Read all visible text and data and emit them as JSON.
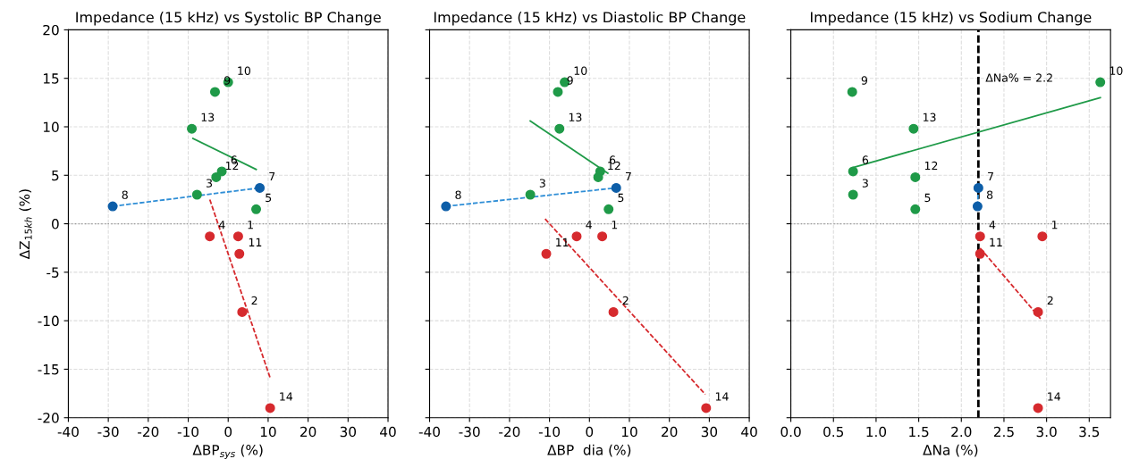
{
  "chart_data": [
    {
      "type": "scatter",
      "title": "Impedance (15 kHz) vs Systolic BP Change",
      "xlabel": "ΔBP$_{sys}$ (%)",
      "ylabel": "ΔZ$_{15kh}$ (%)",
      "xlim": [
        -40,
        40
      ],
      "xticks": [
        -40,
        -30,
        -20,
        -10,
        0,
        10,
        20,
        30,
        40
      ],
      "ylim": [
        -20,
        20
      ],
      "yticks": [
        -20,
        -15,
        -10,
        -5,
        0,
        5,
        10,
        15,
        20
      ],
      "grid": true,
      "marker": "circle",
      "series": [
        {
          "color": "#d62a2e",
          "x": [
            2.5,
            3.5,
            -4.6,
            2.8,
            10.5
          ],
          "values": [
            -1.3,
            -9.1,
            -1.3,
            -3.1,
            -19.0
          ]
        },
        {
          "color": "#1f9a48",
          "x": [
            -7.8,
            7.0,
            -1.6,
            -3.3,
            0.0,
            -3.0,
            -9.1
          ],
          "values": [
            3.0,
            1.5,
            5.4,
            13.6,
            14.6,
            4.8,
            9.8
          ]
        },
        {
          "color": "#0d5ea8",
          "x": [
            7.9,
            -28.9
          ],
          "values": [
            3.7,
            1.8
          ]
        },
        {
          "type": "line",
          "marker": "none",
          "color": "#d62a2e",
          "line_style": "dashed",
          "x": [
            -4.6,
            10.5
          ],
          "values": [
            2.5,
            -15.9
          ]
        },
        {
          "type": "line",
          "marker": "none",
          "color": "#1f9a48",
          "line_style": "solid",
          "x": [
            -8.8,
            7.0
          ],
          "values": [
            8.8,
            5.6
          ]
        },
        {
          "type": "line",
          "marker": "none",
          "color": "#2f8ed6",
          "line_style": "dashed",
          "x": [
            -28.9,
            7.9
          ],
          "values": [
            1.8,
            3.7
          ]
        }
      ],
      "ref_lines": [
        {
          "axis": "y",
          "value": 0,
          "color": "#999999",
          "line_style": "dotted"
        }
      ],
      "annotations": [
        {
          "text": "1",
          "x": 2.5,
          "y": -1.3
        },
        {
          "text": "2",
          "x": 3.5,
          "y": -9.1
        },
        {
          "text": "3",
          "x": -7.8,
          "y": 3.0
        },
        {
          "text": "4",
          "x": -4.6,
          "y": -1.3
        },
        {
          "text": "5",
          "x": 7.0,
          "y": 1.5
        },
        {
          "text": "6",
          "x": -1.6,
          "y": 5.4
        },
        {
          "text": "7",
          "x": 7.9,
          "y": 3.7
        },
        {
          "text": "8",
          "x": -28.9,
          "y": 1.8
        },
        {
          "text": "9",
          "x": -3.3,
          "y": 13.6
        },
        {
          "text": "10",
          "x": 0.0,
          "y": 14.6
        },
        {
          "text": "11",
          "x": 2.8,
          "y": -3.1
        },
        {
          "text": "12",
          "x": -3.0,
          "y": 4.8
        },
        {
          "text": "13",
          "x": -9.1,
          "y": 9.8
        },
        {
          "text": "14",
          "x": 10.5,
          "y": -19.0
        }
      ]
    },
    {
      "type": "scatter",
      "title": "Impedance (15 kHz) vs Diastolic BP Change",
      "xlabel": "ΔBP  dia (%)",
      "xlim": [
        -40,
        40
      ],
      "xticks": [
        -40,
        -30,
        -20,
        -10,
        0,
        10,
        20,
        30,
        40
      ],
      "ylim": [
        -20,
        20
      ],
      "yticks": [
        -20,
        -15,
        -10,
        -5,
        0,
        5,
        10,
        15,
        20
      ],
      "tick_labels": "x",
      "grid": true,
      "marker": "circle",
      "series": [
        {
          "color": "#d62a2e",
          "x": [
            3.2,
            6.0,
            -3.2,
            -10.8,
            29.2
          ],
          "values": [
            -1.3,
            -9.1,
            -1.3,
            -3.1,
            -19.0
          ]
        },
        {
          "color": "#1f9a48",
          "x": [
            -14.8,
            4.8,
            2.7,
            -7.9,
            -6.2,
            2.2,
            -7.5
          ],
          "values": [
            3.0,
            1.5,
            5.4,
            13.6,
            14.6,
            4.8,
            9.8
          ]
        },
        {
          "color": "#0d5ea8",
          "x": [
            6.7,
            -35.9
          ],
          "values": [
            3.7,
            1.8
          ]
        },
        {
          "type": "line",
          "marker": "none",
          "color": "#d62a2e",
          "line_style": "dashed",
          "x": [
            -11.1,
            29.0
          ],
          "values": [
            0.5,
            -17.6
          ]
        },
        {
          "type": "line",
          "marker": "none",
          "color": "#1f9a48",
          "line_style": "solid",
          "x": [
            -14.8,
            4.6
          ],
          "values": [
            10.6,
            5.2
          ]
        },
        {
          "type": "line",
          "marker": "none",
          "color": "#2f8ed6",
          "line_style": "dashed",
          "x": [
            -35.9,
            6.7
          ],
          "values": [
            1.8,
            3.7
          ]
        }
      ],
      "ref_lines": [
        {
          "axis": "y",
          "value": 0,
          "color": "#999999",
          "line_style": "dotted"
        }
      ],
      "annotations": [
        {
          "text": "1",
          "x": 3.2,
          "y": -1.3
        },
        {
          "text": "2",
          "x": 6.0,
          "y": -9.1
        },
        {
          "text": "3",
          "x": -14.8,
          "y": 3.0
        },
        {
          "text": "4",
          "x": -3.2,
          "y": -1.3
        },
        {
          "text": "5",
          "x": 4.8,
          "y": 1.5
        },
        {
          "text": "6",
          "x": 2.7,
          "y": 5.4
        },
        {
          "text": "7",
          "x": 6.7,
          "y": 3.7
        },
        {
          "text": "8",
          "x": -35.9,
          "y": 1.8
        },
        {
          "text": "9",
          "x": -7.9,
          "y": 13.6
        },
        {
          "text": "10",
          "x": -6.2,
          "y": 14.6
        },
        {
          "text": "11",
          "x": -10.8,
          "y": -3.1
        },
        {
          "text": "12",
          "x": 2.2,
          "y": 4.8
        },
        {
          "text": "13",
          "x": -7.5,
          "y": 9.8
        },
        {
          "text": "14",
          "x": 29.2,
          "y": -19.0
        }
      ]
    },
    {
      "type": "scatter",
      "title": "Impedance (15 kHz) vs Sodium Change",
      "xlabel": "ΔNa (%)",
      "xlim": [
        0,
        3.75
      ],
      "xticks": [
        {
          "value": 0,
          "label": "0.0"
        },
        0.5,
        {
          "value": 1,
          "label": "1.0"
        },
        1.5,
        {
          "value": 2,
          "label": "2.0"
        },
        2.5,
        {
          "value": 3,
          "label": "3.0"
        },
        3.5
      ],
      "ylim": [
        -20,
        20
      ],
      "yticks": [
        -20,
        -15,
        -10,
        -5,
        0,
        5,
        10,
        15,
        20
      ],
      "tick_labels": "x",
      "grid": true,
      "marker": "circle",
      "series": [
        {
          "color": "#d62a2e",
          "x": [
            2.95,
            2.9,
            2.22,
            2.22,
            2.9
          ],
          "values": [
            -1.3,
            -9.1,
            -1.3,
            -3.1,
            -19.0
          ]
        },
        {
          "color": "#1f9a48",
          "x": [
            0.73,
            1.46,
            0.73,
            0.72,
            3.63,
            1.46,
            1.44
          ],
          "values": [
            3.0,
            1.5,
            5.4,
            13.6,
            14.6,
            4.8,
            9.8
          ]
        },
        {
          "color": "#0d5ea8",
          "x": [
            2.2,
            2.19
          ],
          "values": [
            3.7,
            1.8
          ]
        },
        {
          "type": "line",
          "marker": "none",
          "color": "#d62a2e",
          "line_style": "dashed",
          "x": [
            2.22,
            2.94
          ],
          "values": [
            -2.5,
            -9.9
          ]
        },
        {
          "type": "line",
          "marker": "none",
          "color": "#1f9a48",
          "line_style": "solid",
          "x": [
            0.73,
            3.63
          ],
          "values": [
            5.8,
            13.0
          ]
        },
        {
          "type": "line",
          "marker": "none",
          "color": "#2f8ed6",
          "line_style": "dashed",
          "x": [
            2.2,
            2.19
          ],
          "values": [
            3.7,
            1.8
          ]
        }
      ],
      "ref_lines": [
        {
          "axis": "y",
          "value": 0,
          "color": "#999999",
          "line_style": "dotted"
        },
        {
          "axis": "x",
          "value": 2.2,
          "label": "ΔNa% = 2.2",
          "color": "#000000",
          "line_style": "dashed"
        }
      ],
      "annotations": [
        {
          "text": "1",
          "x": 2.95,
          "y": -1.3
        },
        {
          "text": "2",
          "x": 2.9,
          "y": -9.1
        },
        {
          "text": "3",
          "x": 0.73,
          "y": 3.0
        },
        {
          "text": "4",
          "x": 2.22,
          "y": -1.3
        },
        {
          "text": "5",
          "x": 1.46,
          "y": 1.5
        },
        {
          "text": "6",
          "x": 0.73,
          "y": 5.4
        },
        {
          "text": "7",
          "x": 2.2,
          "y": 3.7
        },
        {
          "text": "8",
          "x": 2.19,
          "y": 1.8
        },
        {
          "text": "9",
          "x": 0.72,
          "y": 13.6
        },
        {
          "text": "10",
          "x": 3.63,
          "y": 14.6
        },
        {
          "text": "11",
          "x": 2.22,
          "y": -3.1
        },
        {
          "text": "12",
          "x": 1.46,
          "y": 4.8
        },
        {
          "text": "13",
          "x": 1.44,
          "y": 9.8
        },
        {
          "text": "14",
          "x": 2.9,
          "y": -19.0
        }
      ]
    }
  ]
}
